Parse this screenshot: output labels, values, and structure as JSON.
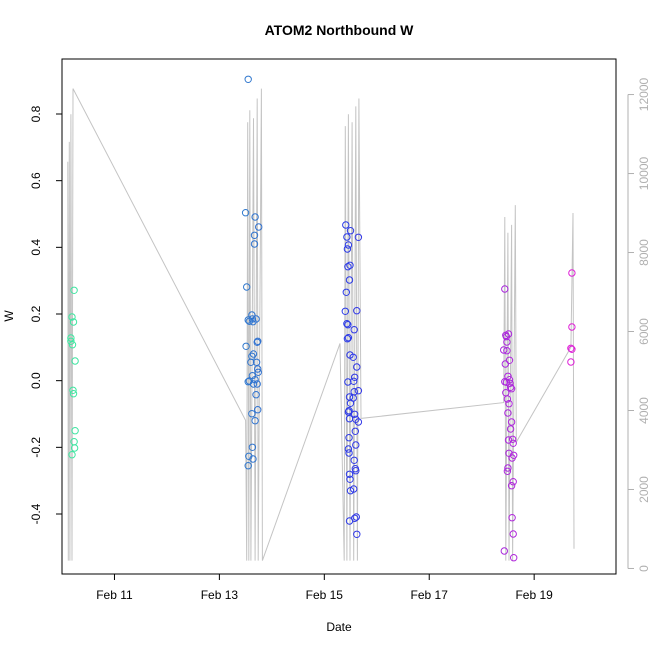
{
  "chart_data": {
    "type": "scatter",
    "title": "ATOM2 Northbound W",
    "xlabel": "Date",
    "ylabel": "W",
    "xlim": [
      10.0,
      20.56
    ],
    "ylim": [
      -0.58,
      0.965
    ],
    "y2lim": [
      -140,
      12900
    ],
    "x_ticks": [
      {
        "value": 11,
        "label": "Feb 11"
      },
      {
        "value": 13,
        "label": "Feb 13"
      },
      {
        "value": 15,
        "label": "Feb 15"
      },
      {
        "value": 17,
        "label": "Feb 17"
      },
      {
        "value": 19,
        "label": "Feb 19"
      }
    ],
    "y_ticks": [
      {
        "value": -0.4,
        "label": "-0.4"
      },
      {
        "value": -0.2,
        "label": "-0.2"
      },
      {
        "value": 0.0,
        "label": "0.0"
      },
      {
        "value": 0.2,
        "label": "0.2"
      },
      {
        "value": 0.4,
        "label": "0.4"
      },
      {
        "value": 0.6,
        "label": "0.6"
      },
      {
        "value": 0.8,
        "label": "0.8"
      }
    ],
    "y2_ticks": [
      {
        "value": 0,
        "label": "0"
      },
      {
        "value": 2000,
        "label": "2000"
      },
      {
        "value": 4000,
        "label": "4000"
      },
      {
        "value": 6000,
        "label": "6000"
      },
      {
        "value": 8000,
        "label": "8000"
      },
      {
        "value": 10000,
        "label": "10000"
      },
      {
        "value": 12000,
        "label": "12000"
      }
    ],
    "grid": false,
    "colors": {
      "points_start": "#3de8a0",
      "points_mid": "#2a3ae8",
      "points_end": "#e020d8",
      "secondary_line": "#c4c4c4",
      "right_axis": "#b0b0b0"
    },
    "points": [
      {
        "x": 10.17,
        "y": 0.128
      },
      {
        "x": 10.17,
        "y": 0.118
      },
      {
        "x": 10.19,
        "y": 0.191
      },
      {
        "x": 10.2,
        "y": 0.108
      },
      {
        "x": 10.22,
        "y": 0.176
      },
      {
        "x": 10.21,
        "y": -0.029
      },
      {
        "x": 10.22,
        "y": -0.039
      },
      {
        "x": 10.19,
        "y": -0.222
      },
      {
        "x": 10.23,
        "y": -0.183
      },
      {
        "x": 10.24,
        "y": -0.202
      },
      {
        "x": 10.23,
        "y": 0.271
      },
      {
        "x": 10.25,
        "y": 0.059
      },
      {
        "x": 10.25,
        "y": -0.15
      },
      {
        "x": 13.55,
        "y": 0.904
      },
      {
        "x": 13.5,
        "y": 0.504
      },
      {
        "x": 13.52,
        "y": 0.281
      },
      {
        "x": 13.55,
        "y": 0.182
      },
      {
        "x": 13.57,
        "y": 0.178
      },
      {
        "x": 13.51,
        "y": 0.103
      },
      {
        "x": 13.6,
        "y": 0.055
      },
      {
        "x": 13.55,
        "y": -0.003
      },
      {
        "x": 13.57,
        "y": -0.001
      },
      {
        "x": 13.56,
        "y": -0.227
      },
      {
        "x": 13.55,
        "y": -0.255
      },
      {
        "x": 13.62,
        "y": 0.197
      },
      {
        "x": 13.63,
        "y": 0.185
      },
      {
        "x": 13.64,
        "y": 0.177
      },
      {
        "x": 13.62,
        "y": 0.073
      },
      {
        "x": 13.65,
        "y": 0.08
      },
      {
        "x": 13.63,
        "y": 0.015
      },
      {
        "x": 13.65,
        "y": -0.01
      },
      {
        "x": 13.62,
        "y": -0.099
      },
      {
        "x": 13.63,
        "y": -0.2
      },
      {
        "x": 13.64,
        "y": -0.235
      },
      {
        "x": 13.68,
        "y": 0.491
      },
      {
        "x": 13.67,
        "y": 0.436
      },
      {
        "x": 13.67,
        "y": 0.41
      },
      {
        "x": 13.7,
        "y": 0.185
      },
      {
        "x": 13.72,
        "y": 0.115
      },
      {
        "x": 13.73,
        "y": 0.118
      },
      {
        "x": 13.71,
        "y": 0.055
      },
      {
        "x": 13.73,
        "y": 0.035
      },
      {
        "x": 13.74,
        "y": 0.025
      },
      {
        "x": 13.68,
        "y": 0.003
      },
      {
        "x": 13.72,
        "y": -0.01
      },
      {
        "x": 13.7,
        "y": -0.042
      },
      {
        "x": 13.73,
        "y": -0.087
      },
      {
        "x": 13.68,
        "y": -0.12
      },
      {
        "x": 13.75,
        "y": 0.461
      },
      {
        "x": 15.41,
        "y": 0.467
      },
      {
        "x": 15.43,
        "y": 0.431
      },
      {
        "x": 15.46,
        "y": 0.407
      },
      {
        "x": 15.44,
        "y": 0.395
      },
      {
        "x": 15.5,
        "y": 0.45
      },
      {
        "x": 15.45,
        "y": 0.342
      },
      {
        "x": 15.49,
        "y": 0.346
      },
      {
        "x": 15.48,
        "y": 0.302
      },
      {
        "x": 15.42,
        "y": 0.265
      },
      {
        "x": 15.4,
        "y": 0.208
      },
      {
        "x": 15.43,
        "y": 0.171
      },
      {
        "x": 15.45,
        "y": 0.168
      },
      {
        "x": 15.44,
        "y": 0.126
      },
      {
        "x": 15.46,
        "y": 0.129
      },
      {
        "x": 15.49,
        "y": 0.077
      },
      {
        "x": 15.45,
        "y": -0.004
      },
      {
        "x": 15.48,
        "y": -0.049
      },
      {
        "x": 15.5,
        "y": -0.068
      },
      {
        "x": 15.47,
        "y": -0.09
      },
      {
        "x": 15.46,
        "y": -0.094
      },
      {
        "x": 15.48,
        "y": -0.114
      },
      {
        "x": 15.47,
        "y": -0.171
      },
      {
        "x": 15.46,
        "y": -0.205
      },
      {
        "x": 15.47,
        "y": -0.217
      },
      {
        "x": 15.48,
        "y": -0.281
      },
      {
        "x": 15.49,
        "y": -0.296
      },
      {
        "x": 15.5,
        "y": -0.33
      },
      {
        "x": 15.48,
        "y": -0.421
      },
      {
        "x": 15.55,
        "y": 0.07
      },
      {
        "x": 15.57,
        "y": 0.153
      },
      {
        "x": 15.58,
        "y": 0.01
      },
      {
        "x": 15.56,
        "y": -0.002
      },
      {
        "x": 15.55,
        "y": -0.052
      },
      {
        "x": 15.57,
        "y": -0.033
      },
      {
        "x": 15.58,
        "y": -0.101
      },
      {
        "x": 15.6,
        "y": -0.116
      },
      {
        "x": 15.59,
        "y": -0.152
      },
      {
        "x": 15.6,
        "y": -0.193
      },
      {
        "x": 15.57,
        "y": -0.239
      },
      {
        "x": 15.59,
        "y": -0.264
      },
      {
        "x": 15.6,
        "y": -0.27
      },
      {
        "x": 15.56,
        "y": -0.325
      },
      {
        "x": 15.61,
        "y": -0.409
      },
      {
        "x": 15.58,
        "y": -0.413
      },
      {
        "x": 15.62,
        "y": -0.461
      },
      {
        "x": 15.62,
        "y": 0.21
      },
      {
        "x": 15.62,
        "y": 0.041
      },
      {
        "x": 15.65,
        "y": 0.43
      },
      {
        "x": 15.65,
        "y": -0.03
      },
      {
        "x": 15.65,
        "y": -0.124
      },
      {
        "x": 18.42,
        "y": 0.092
      },
      {
        "x": 18.44,
        "y": 0.275
      },
      {
        "x": 18.46,
        "y": 0.136
      },
      {
        "x": 18.47,
        "y": 0.132
      },
      {
        "x": 18.48,
        "y": 0.09
      },
      {
        "x": 18.45,
        "y": 0.05
      },
      {
        "x": 18.44,
        "y": -0.003
      },
      {
        "x": 18.47,
        "y": -0.005
      },
      {
        "x": 18.5,
        "y": 0.013
      },
      {
        "x": 18.46,
        "y": -0.036
      },
      {
        "x": 18.49,
        "y": -0.055
      },
      {
        "x": 18.52,
        "y": -0.069
      },
      {
        "x": 18.5,
        "y": -0.097
      },
      {
        "x": 18.51,
        "y": -0.178
      },
      {
        "x": 18.52,
        "y": -0.218
      },
      {
        "x": 18.5,
        "y": -0.262
      },
      {
        "x": 18.49,
        "y": -0.272
      },
      {
        "x": 18.51,
        "y": 0.14
      },
      {
        "x": 18.53,
        "y": 0.061
      },
      {
        "x": 18.54,
        "y": -0.008
      },
      {
        "x": 18.55,
        "y": -0.02
      },
      {
        "x": 18.53,
        "y": 0.003
      },
      {
        "x": 18.57,
        "y": -0.024
      },
      {
        "x": 18.55,
        "y": -0.145
      },
      {
        "x": 18.57,
        "y": -0.124
      },
      {
        "x": 18.59,
        "y": -0.176
      },
      {
        "x": 18.6,
        "y": -0.188
      },
      {
        "x": 18.58,
        "y": -0.232
      },
      {
        "x": 18.61,
        "y": -0.224
      },
      {
        "x": 18.6,
        "y": -0.303
      },
      {
        "x": 18.57,
        "y": -0.315
      },
      {
        "x": 18.58,
        "y": -0.411
      },
      {
        "x": 18.6,
        "y": -0.46
      },
      {
        "x": 18.61,
        "y": -0.531
      },
      {
        "x": 18.43,
        "y": -0.511
      },
      {
        "x": 18.48,
        "y": 0.116
      },
      {
        "x": 19.72,
        "y": 0.323
      },
      {
        "x": 19.72,
        "y": 0.161
      },
      {
        "x": 19.7,
        "y": 0.097
      },
      {
        "x": 19.72,
        "y": 0.094
      },
      {
        "x": 19.7,
        "y": 0.056
      }
    ],
    "secondary_line": [
      {
        "x": 10.11,
        "y2": 10300
      },
      {
        "x": 10.12,
        "y2": 200
      },
      {
        "x": 10.14,
        "y2": 10800
      },
      {
        "x": 10.15,
        "y2": 200
      },
      {
        "x": 10.17,
        "y2": 11500
      },
      {
        "x": 10.19,
        "y2": 200
      },
      {
        "x": 10.21,
        "y2": 12150
      },
      {
        "x": 13.5,
        "y2": 3750
      },
      {
        "x": 13.52,
        "y2": 200
      },
      {
        "x": 13.54,
        "y2": 11300
      },
      {
        "x": 13.56,
        "y2": 200
      },
      {
        "x": 13.58,
        "y2": 11600
      },
      {
        "x": 13.6,
        "y2": 200
      },
      {
        "x": 13.65,
        "y2": 11400
      },
      {
        "x": 13.68,
        "y2": 200
      },
      {
        "x": 13.72,
        "y2": 11900
      },
      {
        "x": 13.74,
        "y2": 200
      },
      {
        "x": 13.8,
        "y2": 12150
      },
      {
        "x": 13.82,
        "y2": 200
      },
      {
        "x": 15.3,
        "y2": 5700
      },
      {
        "x": 15.38,
        "y2": 200
      },
      {
        "x": 15.4,
        "y2": 11200
      },
      {
        "x": 15.43,
        "y2": 200
      },
      {
        "x": 15.46,
        "y2": 11500
      },
      {
        "x": 15.49,
        "y2": 200
      },
      {
        "x": 15.53,
        "y2": 11300
      },
      {
        "x": 15.56,
        "y2": 200
      },
      {
        "x": 15.6,
        "y2": 11700
      },
      {
        "x": 15.63,
        "y2": 200
      },
      {
        "x": 15.66,
        "y2": 11900
      },
      {
        "x": 15.7,
        "y2": 3800
      },
      {
        "x": 18.42,
        "y2": 4200
      },
      {
        "x": 18.44,
        "y2": 8900
      },
      {
        "x": 18.46,
        "y2": 200
      },
      {
        "x": 18.5,
        "y2": 8500
      },
      {
        "x": 18.52,
        "y2": 200
      },
      {
        "x": 18.57,
        "y2": 8700
      },
      {
        "x": 18.59,
        "y2": 200
      },
      {
        "x": 18.64,
        "y2": 9200
      },
      {
        "x": 18.66,
        "y2": 3200
      },
      {
        "x": 19.7,
        "y2": 5600
      },
      {
        "x": 19.74,
        "y2": 9000
      },
      {
        "x": 19.76,
        "y2": 500
      }
    ]
  }
}
